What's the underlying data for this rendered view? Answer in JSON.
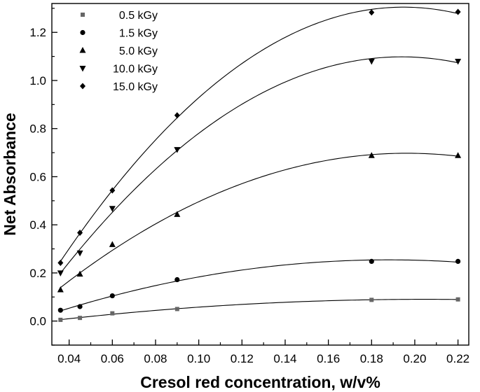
{
  "chart_data": {
    "type": "scatter",
    "xlabel": "Cresol red concentration, w/v%",
    "ylabel": "Net Absorbance",
    "xlim": [
      0.032,
      0.225
    ],
    "ylim": [
      -0.1,
      1.32
    ],
    "xticks": [
      0.04,
      0.06,
      0.08,
      0.1,
      0.12,
      0.14,
      0.16,
      0.18,
      0.2,
      0.22
    ],
    "xtick_labels": [
      "0.04",
      "0.06",
      "0.08",
      "0.10",
      "0.12",
      "0.14",
      "0.16",
      "0.18",
      "0.20",
      "0.22"
    ],
    "yticks": [
      0.0,
      0.2,
      0.4,
      0.6,
      0.8,
      1.0,
      1.2
    ],
    "ytick_labels": [
      "0.0",
      "0.2",
      "0.4",
      "0.6",
      "0.8",
      "1.0",
      "1.2"
    ],
    "grid": false,
    "legend_position": "top-left",
    "fit_curves": "polynomial",
    "x": [
      0.036,
      0.045,
      0.06,
      0.09,
      0.18,
      0.22
    ],
    "series": [
      {
        "name": "0.5 kGy",
        "marker": "square",
        "color": "#666666",
        "values": [
          0.005,
          0.013,
          0.032,
          0.05,
          0.088,
          0.09
        ]
      },
      {
        "name": "1.5 kGy",
        "marker": "circle",
        "color": "#000000",
        "values": [
          0.045,
          0.06,
          0.105,
          0.172,
          0.248,
          0.248
        ]
      },
      {
        "name": "5.0 kGy",
        "marker": "triangle-up",
        "color": "#000000",
        "values": [
          0.13,
          0.195,
          0.318,
          0.443,
          0.688,
          0.688
        ]
      },
      {
        "name": "10.0 kGy",
        "marker": "triangle-down",
        "color": "#000000",
        "values": [
          0.2,
          0.283,
          0.468,
          0.713,
          1.08,
          1.08
        ]
      },
      {
        "name": "15.0 kGy",
        "marker": "diamond",
        "color": "#000000",
        "values": [
          0.242,
          0.367,
          0.543,
          0.855,
          1.283,
          1.285
        ]
      }
    ]
  }
}
